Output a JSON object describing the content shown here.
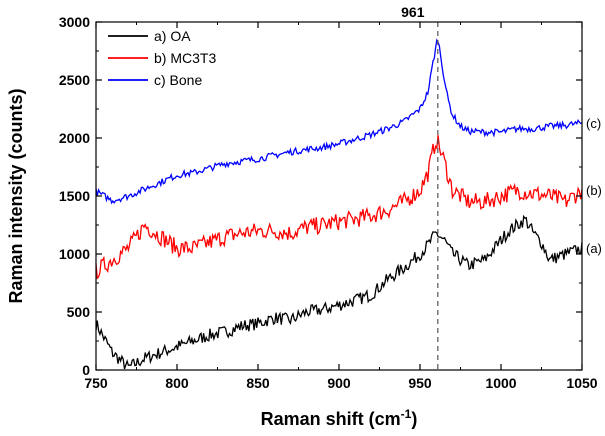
{
  "chart_data": {
    "type": "line",
    "xlabel": "Raman shift (cm",
    "xlabel_sup": "-1",
    "xlabel_end": ")",
    "ylabel": "Raman intensity (counts)",
    "xlim": [
      750,
      1050
    ],
    "ylim": [
      0,
      3000
    ],
    "xticks": [
      750,
      800,
      850,
      900,
      950,
      1000,
      1050
    ],
    "yticks": [
      0,
      500,
      1000,
      1500,
      2000,
      2500,
      3000
    ],
    "grid": false,
    "legend_position": "top-left",
    "annotation": {
      "label": "961",
      "x": 961
    },
    "series": [
      {
        "name": "a) OA",
        "curve_label": "(a)",
        "color": "#000000",
        "x": [
          750,
          760,
          770,
          780,
          790,
          800,
          810,
          820,
          830,
          840,
          850,
          860,
          870,
          880,
          890,
          900,
          910,
          920,
          930,
          940,
          950,
          955,
          960,
          965,
          970,
          975,
          980,
          990,
          1000,
          1005,
          1010,
          1015,
          1020,
          1025,
          1030,
          1040,
          1050
        ],
        "y": [
          400,
          150,
          20,
          100,
          150,
          200,
          250,
          300,
          330,
          380,
          400,
          450,
          430,
          500,
          520,
          560,
          600,
          650,
          780,
          880,
          1000,
          1080,
          1180,
          1120,
          1000,
          950,
          900,
          950,
          1120,
          1200,
          1250,
          1300,
          1180,
          1100,
          950,
          1000,
          1050
        ]
      },
      {
        "name": "b) MC3T3",
        "curve_label": "(b)",
        "color": "#ff0000",
        "x": [
          750,
          760,
          770,
          780,
          790,
          800,
          810,
          820,
          830,
          840,
          850,
          860,
          870,
          880,
          890,
          900,
          910,
          920,
          930,
          940,
          950,
          955,
          960,
          965,
          970,
          975,
          980,
          990,
          1000,
          1010,
          1020,
          1030,
          1040,
          1050
        ],
        "y": [
          850,
          950,
          1050,
          1250,
          1150,
          1050,
          1050,
          1100,
          1150,
          1180,
          1200,
          1200,
          1180,
          1230,
          1250,
          1280,
          1300,
          1330,
          1380,
          1450,
          1550,
          1700,
          2000,
          1800,
          1550,
          1500,
          1450,
          1450,
          1500,
          1550,
          1520,
          1500,
          1450,
          1550
        ]
      },
      {
        "name": "c) Bone",
        "curve_label": "(c)",
        "color": "#0000ff",
        "x": [
          750,
          760,
          770,
          780,
          790,
          800,
          810,
          820,
          830,
          840,
          850,
          860,
          870,
          880,
          890,
          900,
          910,
          920,
          930,
          940,
          950,
          955,
          958,
          961,
          964,
          967,
          970,
          975,
          980,
          990,
          1000,
          1010,
          1020,
          1030,
          1040,
          1050
        ],
        "y": [
          1540,
          1460,
          1500,
          1560,
          1620,
          1680,
          1700,
          1740,
          1780,
          1800,
          1820,
          1850,
          1880,
          1900,
          1920,
          1950,
          1990,
          2030,
          2080,
          2140,
          2250,
          2400,
          2650,
          2870,
          2600,
          2350,
          2200,
          2100,
          2060,
          2050,
          2050,
          2080,
          2080,
          2100,
          2110,
          2130
        ]
      }
    ]
  }
}
